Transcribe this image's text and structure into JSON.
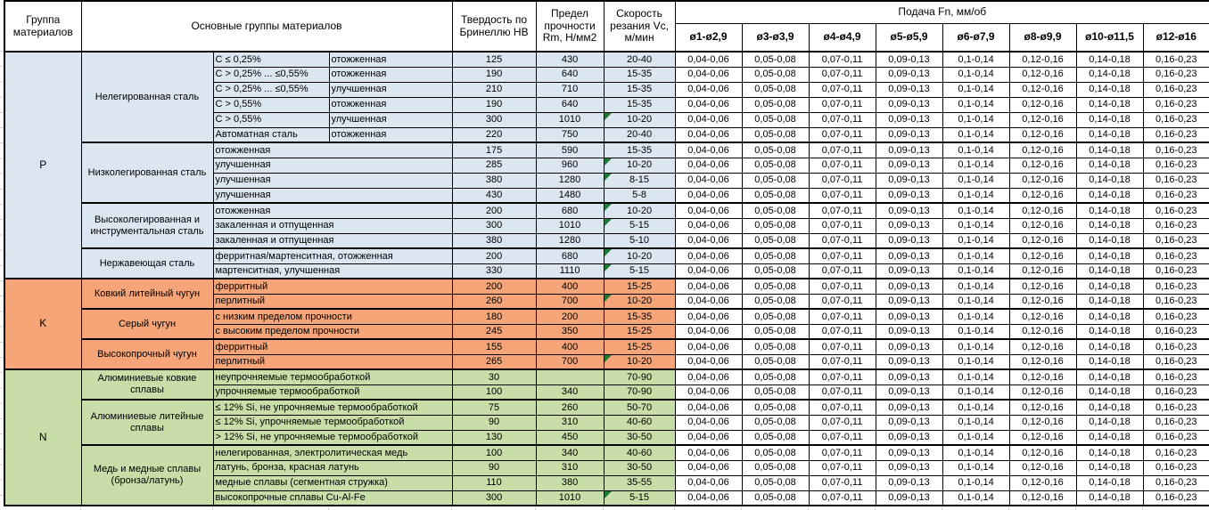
{
  "header": {
    "group_col": "Группа материалов",
    "main_col": "Основные группы материалов",
    "hb_col": "Твердость по Бринеллю HB",
    "rm_col": "Предел прочности Rm, Н/мм2",
    "vc_col": "Скорость резания Vc, м/мин",
    "feed_title": "Подача Fn, мм/об",
    "feed_cols": [
      "ø1-ø2,9",
      "ø3-ø3,9",
      "ø4-ø4,9",
      "ø5-ø5,9",
      "ø6-ø7,9",
      "ø8-ø9,9",
      "ø10-ø11,5",
      "ø12-ø16"
    ]
  },
  "feed_values": [
    "0,04-0,06",
    "0,05-0,08",
    "0,07-0,11",
    "0,09-0,13",
    "0,1-0,14",
    "0,12-0,16",
    "0,14-0,18",
    "0,16-0,23"
  ],
  "groups": [
    {
      "letter": "P",
      "color": "#DCE6F1",
      "subgroups": [
        {
          "name": "Нелегированная сталь",
          "rows": [
            {
              "d1": "C ≤ 0,25%",
              "d2": "отожженная",
              "hb": "125",
              "rm": "430",
              "vc": "20-40",
              "note": false
            },
            {
              "d1": "C > 0,25% ... ≤0,55%",
              "d2": "отожженная",
              "hb": "190",
              "rm": "640",
              "vc": "15-35",
              "note": false
            },
            {
              "d1": "C > 0,25% ... ≤0,55%",
              "d2": "улучшенная",
              "hb": "210",
              "rm": "710",
              "vc": "15-35",
              "note": false
            },
            {
              "d1": "C > 0,55%",
              "d2": "отожженная",
              "hb": "190",
              "rm": "640",
              "vc": "15-35",
              "note": false
            },
            {
              "d1": "C > 0,55%",
              "d2": "улучшенная",
              "hb": "300",
              "rm": "1010",
              "vc": "10-20",
              "note": true
            },
            {
              "d1": "Автоматная сталь",
              "d2": "отожженная",
              "hb": "220",
              "rm": "750",
              "vc": "20-40",
              "note": false
            }
          ]
        },
        {
          "name": "Низколегированная сталь",
          "rows": [
            {
              "d1": "отожженная",
              "d2": null,
              "hb": "175",
              "rm": "590",
              "vc": "15-35",
              "note": false
            },
            {
              "d1": "улучшенная",
              "d2": null,
              "hb": "285",
              "rm": "960",
              "vc": "10-20",
              "note": true
            },
            {
              "d1": "улучшенная",
              "d2": null,
              "hb": "380",
              "rm": "1280",
              "vc": "8-15",
              "note": true
            },
            {
              "d1": "улучшенная",
              "d2": null,
              "hb": "430",
              "rm": "1480",
              "vc": "5-8",
              "note": false
            }
          ]
        },
        {
          "name": "Высоколегированная и инструментальная сталь",
          "rows": [
            {
              "d1": "отожженная",
              "d2": null,
              "hb": "200",
              "rm": "680",
              "vc": "10-20",
              "note": true
            },
            {
              "d1": "закаленная и отпущенная",
              "d2": null,
              "hb": "300",
              "rm": "1010",
              "vc": "5-15",
              "note": true
            },
            {
              "d1": "закаленная и отпущенная",
              "d2": null,
              "hb": "380",
              "rm": "1280",
              "vc": "5-10",
              "note": false
            }
          ]
        },
        {
          "name": "Нержавеющая сталь",
          "rows": [
            {
              "d1": "ферритная/мартенситная, отожженная",
              "d2": null,
              "hb": "200",
              "rm": "680",
              "vc": "10-20",
              "note": true
            },
            {
              "d1": "мартенситная, улучшенная",
              "d2": null,
              "hb": "330",
              "rm": "1110",
              "vc": "5-15",
              "note": true
            }
          ]
        }
      ]
    },
    {
      "letter": "K",
      "color": "#F5A577",
      "subgroups": [
        {
          "name": "Ковкий литейный чугун",
          "rows": [
            {
              "d1": "ферритный",
              "d2": null,
              "hb": "200",
              "rm": "400",
              "vc": "15-25",
              "note": false
            },
            {
              "d1": "перлитный",
              "d2": null,
              "hb": "260",
              "rm": "700",
              "vc": "10-20",
              "note": true
            }
          ]
        },
        {
          "name": "Серый чугун",
          "rows": [
            {
              "d1": "с низким пределом прочности",
              "d2": null,
              "hb": "180",
              "rm": "200",
              "vc": "15-35",
              "note": false
            },
            {
              "d1": "с высоким пределом прочности",
              "d2": null,
              "hb": "245",
              "rm": "350",
              "vc": "15-25",
              "note": false
            }
          ]
        },
        {
          "name": "Высокопрочный чугун",
          "rows": [
            {
              "d1": "ферритный",
              "d2": null,
              "hb": "155",
              "rm": "400",
              "vc": "15-25",
              "note": false
            },
            {
              "d1": "перлитный",
              "d2": null,
              "hb": "265",
              "rm": "700",
              "vc": "10-20",
              "note": true
            }
          ]
        }
      ]
    },
    {
      "letter": "N",
      "color": "#C8DDA7",
      "subgroups": [
        {
          "name": "Алюминиевые ковкие сплавы",
          "rows": [
            {
              "d1": "неупрочняемые термообработкой",
              "d2": null,
              "hb": "30",
              "rm": "",
              "vc": "70-90",
              "note": false
            },
            {
              "d1": "упрочняемые термообработкой",
              "d2": null,
              "hb": "100",
              "rm": "340",
              "vc": "70-90",
              "note": false
            }
          ]
        },
        {
          "name": "Алюминиевые литейные сплавы",
          "rows": [
            {
              "d1": "≤ 12% Si, не упрочняемые термообработкой",
              "d2": null,
              "hb": "75",
              "rm": "260",
              "vc": "50-70",
              "note": false
            },
            {
              "d1": "≤ 12% Si, упрочняемые термообработкой",
              "d2": null,
              "hb": "90",
              "rm": "310",
              "vc": "40-60",
              "note": false
            },
            {
              "d1": "> 12% Si, не упрочняемые термообработкой",
              "d2": null,
              "hb": "130",
              "rm": "450",
              "vc": "30-50",
              "note": false
            }
          ]
        },
        {
          "name": "Медь и медные сплавы (бронза/латунь)",
          "rows": [
            {
              "d1": "нелегированная, электролитическая медь",
              "d2": null,
              "hb": "100",
              "rm": "340",
              "vc": "40-60",
              "note": false
            },
            {
              "d1": "латунь, бронза, красная латунь",
              "d2": null,
              "hb": "90",
              "rm": "310",
              "vc": "30-50",
              "note": false
            },
            {
              "d1": "медные сплавы (сегментная стружка)",
              "d2": null,
              "hb": "110",
              "rm": "380",
              "vc": "35-55",
              "note": false
            },
            {
              "d1": "высокопрочные сплавы Cu-Al-Fe",
              "d2": null,
              "hb": "300",
              "rm": "1010",
              "vc": "5-15",
              "note": true
            }
          ]
        }
      ]
    }
  ]
}
